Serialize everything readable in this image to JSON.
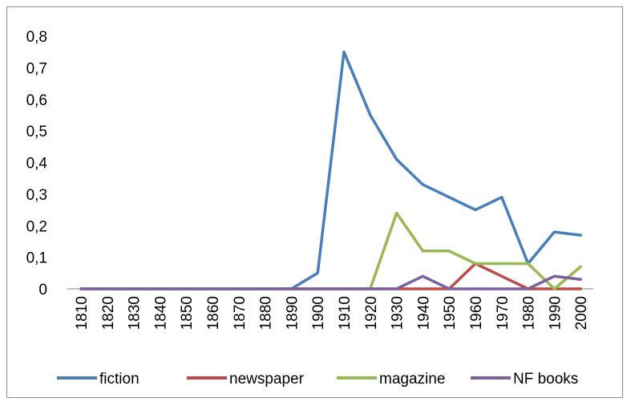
{
  "chart_data": {
    "type": "line",
    "title": "",
    "xlabel": "",
    "ylabel": "",
    "x": [
      "1810",
      "1820",
      "1830",
      "1840",
      "1850",
      "1860",
      "1870",
      "1880",
      "1890",
      "1900",
      "1910",
      "1920",
      "1930",
      "1940",
      "1950",
      "1960",
      "1970",
      "1980",
      "1990",
      "2000"
    ],
    "y_ticks": [
      "0",
      "0,1",
      "0,2",
      "0,3",
      "0,4",
      "0,5",
      "0,6",
      "0,7",
      "0,8"
    ],
    "ylim": [
      0,
      0.8
    ],
    "grid": false,
    "legend_position": "bottom",
    "series": [
      {
        "name": "fiction",
        "color": "#4A7EBB",
        "values": [
          0,
          0,
          0,
          0,
          0,
          0,
          0,
          0,
          0,
          0.05,
          0.75,
          0.55,
          0.41,
          0.33,
          0.29,
          0.25,
          0.29,
          0.08,
          0.18,
          0.17
        ]
      },
      {
        "name": "newspaper",
        "color": "#BE4B48",
        "values": [
          0,
          0,
          0,
          0,
          0,
          0,
          0,
          0,
          0,
          0,
          0,
          0,
          0,
          0,
          0,
          0.08,
          0.04,
          0,
          0,
          0
        ]
      },
      {
        "name": "magazine",
        "color": "#98B954",
        "values": [
          0,
          0,
          0,
          0,
          0,
          0,
          0,
          0,
          0,
          0,
          0,
          0,
          0.24,
          0.12,
          0.12,
          0.08,
          0.08,
          0.08,
          0,
          0.07
        ]
      },
      {
        "name": "NF books",
        "color": "#7D60A0",
        "values": [
          0,
          0,
          0,
          0,
          0,
          0,
          0,
          0,
          0,
          0,
          0,
          0,
          0,
          0.04,
          0,
          0,
          0,
          0,
          0.04,
          0.03
        ]
      }
    ]
  }
}
